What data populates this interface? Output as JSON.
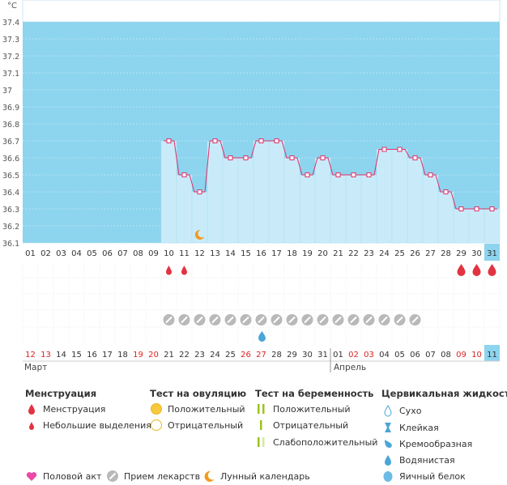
{
  "chart_data": {
    "type": "line",
    "ylabel": "°C",
    "ylim": [
      36.1,
      37.4
    ],
    "yticks": [
      "36.1",
      "36.2",
      "36.3",
      "36.4",
      "36.5",
      "36.6",
      "36.7",
      "36.8",
      "36.9",
      "37",
      "37.1",
      "37.2",
      "37.3",
      "37.4"
    ],
    "x_top": [
      "01",
      "02",
      "03",
      "04",
      "05",
      "06",
      "07",
      "08",
      "09",
      "10",
      "11",
      "12",
      "13",
      "14",
      "15",
      "16",
      "17",
      "18",
      "19",
      "20",
      "21",
      "22",
      "23",
      "24",
      "25",
      "26",
      "27",
      "28",
      "29",
      "30",
      "31"
    ],
    "x_bottom": [
      "12",
      "13",
      "14",
      "15",
      "16",
      "17",
      "18",
      "19",
      "20",
      "21",
      "22",
      "23",
      "24",
      "25",
      "26",
      "27",
      "28",
      "29",
      "30",
      "31",
      "01",
      "02",
      "03",
      "04",
      "05",
      "06",
      "07",
      "08",
      "09",
      "10",
      "11"
    ],
    "red_days_bottom": [
      "12",
      "13",
      "19",
      "20",
      "26",
      "27",
      "02",
      "03",
      "09",
      "10"
    ],
    "months": [
      "Март",
      "Апрель"
    ],
    "series": [
      {
        "values": [
          null,
          null,
          null,
          null,
          null,
          null,
          null,
          null,
          null,
          36.7,
          36.5,
          36.4,
          36.7,
          36.6,
          36.6,
          36.7,
          36.7,
          36.6,
          36.5,
          36.6,
          36.5,
          36.5,
          36.5,
          36.65,
          36.65,
          36.6,
          36.5,
          36.4,
          36.3,
          36.3,
          36.3
        ]
      }
    ],
    "highlight_index": 30,
    "menstruation_heavy": [
      28,
      29,
      30
    ],
    "menstruation_light": [
      9,
      10
    ],
    "medication_days": [
      9,
      10,
      11,
      12,
      13,
      14,
      15,
      16,
      17,
      18,
      19,
      20,
      21,
      22,
      23,
      24,
      25
    ],
    "cervical_watery": [
      15
    ],
    "lunar_day": 11
  },
  "legend": {
    "groups": [
      {
        "title": "Менструация",
        "items": [
          "Менструация",
          "Небольшие выделения"
        ]
      },
      {
        "title": "Тест на овуляцию",
        "items": [
          "Положительный",
          "Отрицательный"
        ]
      },
      {
        "title": "Тест на беременность",
        "items": [
          "Положительный",
          "Отрицательный",
          "Слабоположительный"
        ]
      },
      {
        "title": "Цервикальная жидкость",
        "items": [
          "Сухо",
          "Клейкая",
          "Кремообразная",
          "Водянистая",
          "Яичный белок"
        ]
      }
    ],
    "bottom": [
      "Половой акт",
      "Прием лекарств",
      "Лунный календарь"
    ]
  },
  "colors": {
    "plot_bg": "#8dd4ee",
    "fill": "#c9ebf9",
    "line": "#e0306a",
    "red": "#e23342",
    "gray_label": "#333",
    "red_label": "#d22"
  }
}
